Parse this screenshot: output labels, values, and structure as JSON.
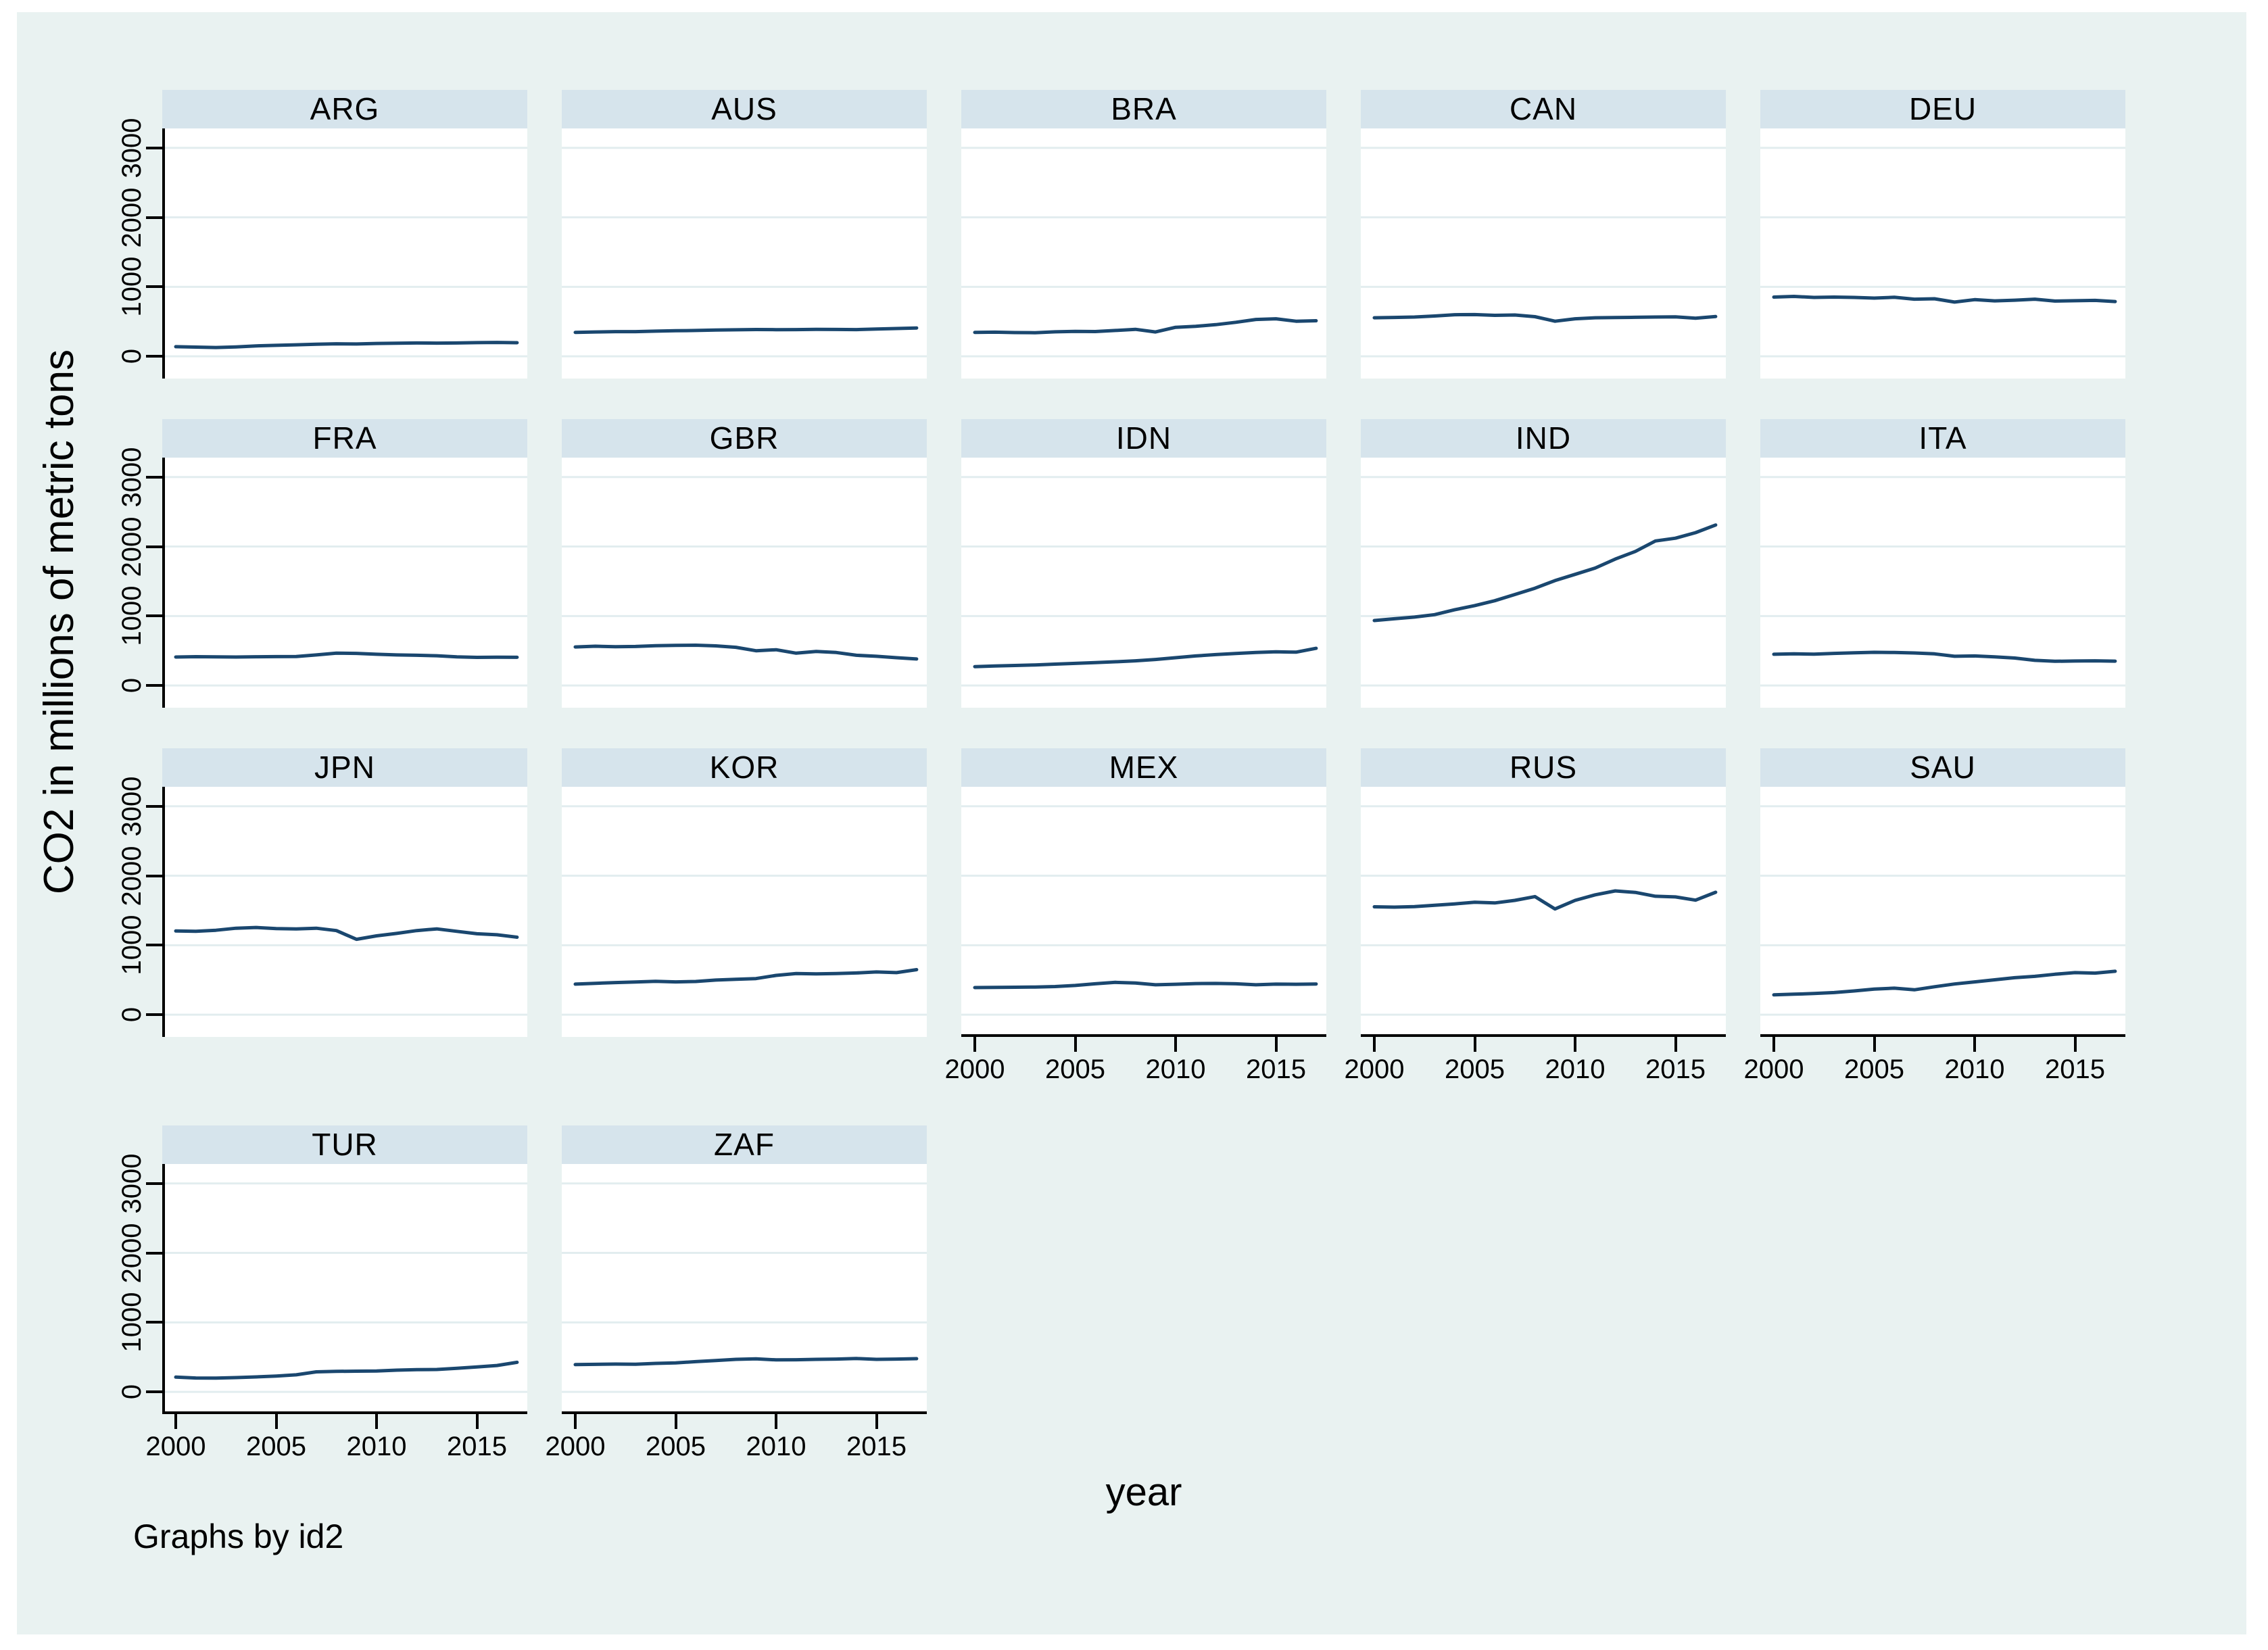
{
  "figure": {
    "ylabel": "CO2 in millions of metric tons",
    "xlabel": "year",
    "caption": "Graphs by id2",
    "colors": {
      "background": "#e9f2f1",
      "title_band": "#d6e4ec",
      "plot_background": "#ffffff",
      "gridline": "#e2edef",
      "line": "#1a476f",
      "axis": "#000000"
    }
  },
  "chart_data": {
    "type": "line",
    "x_label": "year",
    "y_label": "CO2 in millions of metric tons",
    "x": [
      2000,
      2001,
      2002,
      2003,
      2004,
      2005,
      2006,
      2007,
      2008,
      2009,
      2010,
      2011,
      2012,
      2013,
      2014,
      2015,
      2016,
      2017
    ],
    "x_ticks": [
      2000,
      2005,
      2010,
      2015
    ],
    "y_ticks": [
      0,
      1000,
      2000,
      3000
    ],
    "xlim": [
      1999.3,
      2017.5
    ],
    "ylim": [
      -320,
      3280
    ],
    "grid": "horizontal",
    "legend": "none",
    "facet_by": "id2",
    "series": [
      {
        "name": "ARG",
        "values": [
          138,
          132,
          127,
          135,
          150,
          158,
          166,
          174,
          180,
          177,
          185,
          188,
          192,
          190,
          192,
          197,
          200,
          196
        ]
      },
      {
        "name": "AUS",
        "values": [
          345,
          350,
          355,
          355,
          362,
          368,
          372,
          378,
          382,
          385,
          383,
          384,
          388,
          386,
          384,
          392,
          400,
          408
        ]
      },
      {
        "name": "BRA",
        "values": [
          345,
          347,
          342,
          340,
          352,
          358,
          356,
          372,
          388,
          350,
          418,
          432,
          455,
          490,
          530,
          540,
          505,
          512
        ]
      },
      {
        "name": "CAN",
        "values": [
          555,
          560,
          565,
          580,
          598,
          600,
          590,
          595,
          570,
          505,
          540,
          555,
          558,
          562,
          565,
          568,
          548,
          572
        ]
      },
      {
        "name": "DEU",
        "values": [
          852,
          862,
          848,
          852,
          848,
          838,
          850,
          822,
          828,
          780,
          815,
          798,
          808,
          822,
          795,
          800,
          805,
          788
        ]
      },
      {
        "name": "FRA",
        "values": [
          410,
          415,
          412,
          410,
          414,
          416,
          418,
          440,
          465,
          462,
          450,
          440,
          435,
          428,
          412,
          405,
          408,
          406
        ]
      },
      {
        "name": "GBR",
        "values": [
          555,
          565,
          558,
          562,
          572,
          578,
          580,
          570,
          550,
          500,
          515,
          465,
          490,
          475,
          435,
          420,
          400,
          382
        ]
      },
      {
        "name": "IDN",
        "values": [
          272,
          280,
          288,
          296,
          308,
          318,
          330,
          342,
          355,
          375,
          400,
          425,
          445,
          460,
          475,
          485,
          480,
          535
        ]
      },
      {
        "name": "IND",
        "values": [
          935,
          960,
          985,
          1020,
          1090,
          1150,
          1220,
          1310,
          1400,
          1510,
          1600,
          1690,
          1820,
          1930,
          2080,
          2120,
          2200,
          2310
        ]
      },
      {
        "name": "ITA",
        "values": [
          450,
          455,
          452,
          462,
          470,
          478,
          475,
          468,
          455,
          420,
          425,
          412,
          395,
          362,
          348,
          352,
          355,
          350
        ]
      },
      {
        "name": "JPN",
        "values": [
          1205,
          1200,
          1215,
          1245,
          1255,
          1240,
          1235,
          1245,
          1210,
          1085,
          1135,
          1170,
          1210,
          1235,
          1200,
          1165,
          1150,
          1115
        ]
      },
      {
        "name": "KOR",
        "values": [
          440,
          452,
          462,
          470,
          480,
          472,
          478,
          498,
          510,
          520,
          565,
          592,
          588,
          592,
          600,
          615,
          605,
          648
        ]
      },
      {
        "name": "MEX",
        "values": [
          390,
          392,
          395,
          398,
          405,
          420,
          445,
          465,
          455,
          430,
          438,
          448,
          450,
          445,
          430,
          440,
          438,
          442
        ]
      },
      {
        "name": "RUS",
        "values": [
          1553,
          1548,
          1555,
          1575,
          1595,
          1618,
          1608,
          1645,
          1700,
          1522,
          1645,
          1725,
          1782,
          1760,
          1705,
          1695,
          1648,
          1762
        ]
      },
      {
        "name": "SAU",
        "values": [
          285,
          295,
          305,
          318,
          342,
          368,
          382,
          358,
          402,
          442,
          472,
          502,
          532,
          552,
          582,
          605,
          598,
          625
        ]
      },
      {
        "name": "TUR",
        "values": [
          212,
          200,
          198,
          205,
          215,
          228,
          245,
          288,
          295,
          298,
          300,
          312,
          320,
          322,
          340,
          358,
          380,
          425
        ]
      },
      {
        "name": "ZAF",
        "values": [
          392,
          396,
          400,
          398,
          410,
          418,
          435,
          452,
          468,
          475,
          460,
          462,
          468,
          472,
          480,
          468,
          472,
          478
        ]
      }
    ]
  }
}
